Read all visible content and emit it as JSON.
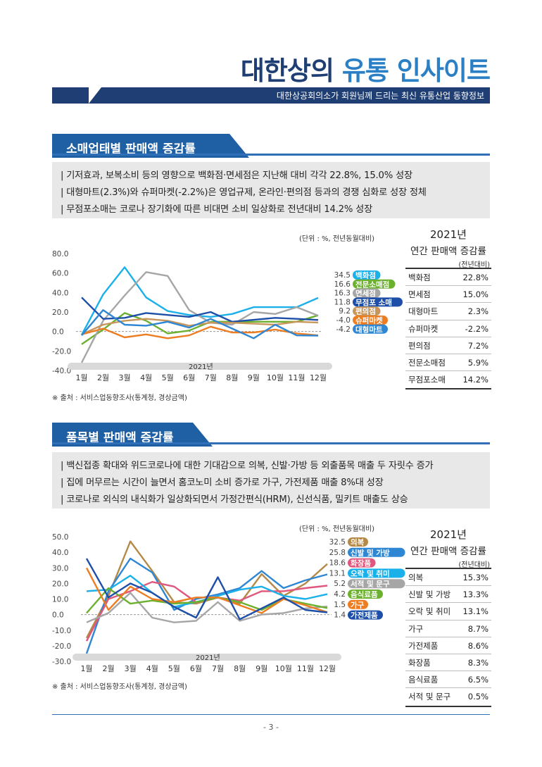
{
  "header": {
    "title_part1": "대한상의 ",
    "title_part2": "유통 인사이트",
    "subtitle": "대한상공회의소가 회원님께 드리는 최신 유통산업 동향정보"
  },
  "sections": [
    {
      "title": "소매업태별 판매액 증감률",
      "bullets": [
        "| 기저효과, 보복소비 등의 영향으로 백화점·면세점은 지난해 대비 각각 22.8%, 15.0% 성장",
        "| 대형마트(2.3%)와 슈퍼마켓(-2.2%)은 영업규제, 온라인·편의점 등과의 경쟁 심화로 성장 정체",
        "| 무점포소매는 코로나 장기화에 따른 비대면 소비 일상화로 전년대비 14.2% 성장"
      ],
      "unit": "(단위 : %, 전년동월대비)",
      "source": "※ 출처 : 서비스업동향조사(통계청, 경상금액)",
      "table": {
        "year": "2021년",
        "name": "연간 판매액 증감률",
        "unit": "(전년대비)",
        "rows": [
          {
            "label": "백화점",
            "value": "22.8%"
          },
          {
            "label": "면세점",
            "value": "15.0%"
          },
          {
            "label": "대형마트",
            "value": "2.3%"
          },
          {
            "label": "슈퍼마켓",
            "value": "-2.2%"
          },
          {
            "label": "편의점",
            "value": "7.2%"
          },
          {
            "label": "전문소매점",
            "value": "5.9%"
          },
          {
            "label": "무점포소매",
            "value": "14.2%"
          }
        ]
      }
    },
    {
      "title": "품목별 판매액 증감률",
      "bullets": [
        "| 백신접종 확대와 위드코로나에 대한 기대감으로 의복, 신발·가방 등 외출품목 매출 두 자릿수 증가",
        "| 집에 머무르는 시간이 늘면서 홈코노미 소비 증가로 가구, 가전제품 매출 8%대 성장",
        "| 코로나로 외식의 내식화가 일상화되면서 가정간편식(HRM), 신선식품, 밀키트 매출도 상승"
      ],
      "unit": "(단위 : %, 전년동월대비)",
      "source": "※ 출처 : 서비스업동향조사(통계청, 경상금액)",
      "table": {
        "year": "2021년",
        "name": "연간 판매액 증감률",
        "unit": "(전년대비)",
        "rows": [
          {
            "label": "의복",
            "value": "15.3%"
          },
          {
            "label": "신발 및 가방",
            "value": "13.3%"
          },
          {
            "label": "오락 및 취미",
            "value": "13.1%"
          },
          {
            "label": "가구",
            "value": "8.7%"
          },
          {
            "label": "가전제품",
            "value": "8.6%"
          },
          {
            "label": "화장품",
            "value": "8.3%"
          },
          {
            "label": "음식료품",
            "value": "6.5%"
          },
          {
            "label": "서적 및 문구",
            "value": "0.5%"
          }
        ]
      }
    }
  ],
  "chart_data": [
    {
      "type": "line",
      "x": [
        "1월",
        "2월",
        "3월",
        "4월",
        "5월",
        "6월",
        "7월",
        "8월",
        "9월",
        "10월",
        "11월",
        "12월"
      ],
      "x_group_label": "2021년",
      "yticks": [
        "80.0",
        "60.0",
        "40.0",
        "20.0",
        "0.0",
        "-20.0",
        "-40.0"
      ],
      "ylim": [
        -40,
        80
      ],
      "series": [
        {
          "name": "백화점",
          "color": "#1ab0ea",
          "end_label": "34.5",
          "values": [
            -3.5,
            38,
            66,
            35,
            21,
            17,
            15,
            18,
            25,
            25,
            25,
            34.5
          ]
        },
        {
          "name": "전문소매점",
          "color": "#6bb02f",
          "end_label": "16.6",
          "values": [
            -13,
            2,
            19,
            11,
            -2,
            1,
            10,
            10,
            10,
            10,
            10,
            16.6
          ]
        },
        {
          "name": "면세점",
          "color": "#a6a6a6",
          "end_label": "16.3",
          "values": [
            -32,
            11,
            37,
            61,
            57,
            22,
            9,
            7,
            20,
            18,
            25,
            16.3
          ]
        },
        {
          "name": "무점포 소매",
          "color": "#1e4fa8",
          "end_label": "11.8",
          "values": [
            35,
            13,
            14,
            19,
            17,
            15,
            20,
            10,
            12,
            14,
            13,
            11.8
          ]
        },
        {
          "name": "편의점",
          "color": "#c8965a",
          "end_label": "9.2",
          "values": [
            -3,
            7,
            11,
            13,
            11,
            6,
            9,
            9,
            8,
            7,
            10,
            9.2
          ]
        },
        {
          "name": "슈퍼마켓",
          "color": "#ee7d22",
          "end_label": "-4.0",
          "values": [
            -3,
            3,
            -6,
            -3,
            -7,
            -4,
            5,
            -1,
            -1,
            2,
            -2,
            -4.0
          ]
        },
        {
          "name": "대형마트",
          "color": "#2f87d3",
          "end_label": "-4.2",
          "values": [
            -4,
            22,
            7,
            6,
            10,
            4,
            13,
            3,
            -7,
            7,
            -4,
            -4.2
          ]
        }
      ]
    },
    {
      "type": "line",
      "x": [
        "1월",
        "2월",
        "3월",
        "4월",
        "5월",
        "6월",
        "7월",
        "8월",
        "9월",
        "10월",
        "11월",
        "12월"
      ],
      "x_group_label": "2021년",
      "yticks": [
        "50.0",
        "40.0",
        "30.0",
        "20.0",
        "10.0",
        "0.0",
        "-10.0",
        "-20.0",
        "-30.0"
      ],
      "ylim": [
        -30,
        50
      ],
      "series": [
        {
          "name": "의복",
          "color": "#b58a48",
          "end_label": "32.5",
          "values": [
            -15,
            12,
            47,
            28,
            8,
            7,
            11,
            7,
            26,
            12,
            20,
            32.5
          ]
        },
        {
          "name": "신발 및 가방",
          "color": "#2f87d3",
          "end_label": "25.8",
          "values": [
            -25,
            15,
            36,
            27,
            3,
            10,
            13,
            17,
            28,
            17,
            22,
            25.8
          ]
        },
        {
          "name": "화장품",
          "color": "#e0577d",
          "end_label": "18.6",
          "values": [
            -17,
            10,
            15,
            21,
            18,
            8,
            11,
            9,
            15,
            15,
            17,
            18.6
          ]
        },
        {
          "name": "오락 및 취미",
          "color": "#1ab0ea",
          "end_label": "13.1",
          "values": [
            15,
            16,
            25,
            14,
            5,
            8,
            12,
            16,
            18,
            12,
            10,
            13.1
          ]
        },
        {
          "name": "서적 및 문구",
          "color": "#a6a6a6",
          "end_label": "5.2",
          "values": [
            -5,
            1,
            14,
            -2,
            -5,
            -4,
            8,
            -4,
            0,
            1,
            4,
            5.2
          ]
        },
        {
          "name": "음식료품",
          "color": "#6bb02f",
          "end_label": "4.2",
          "values": [
            1,
            17,
            7,
            9,
            7,
            8,
            11,
            8,
            3,
            10,
            7,
            4.2
          ]
        },
        {
          "name": "가구",
          "color": "#ee7d22",
          "end_label": "1.5",
          "values": [
            30,
            3,
            18,
            10,
            8,
            11,
            11,
            6,
            1,
            10,
            6,
            1.5
          ]
        },
        {
          "name": "가전제품",
          "color": "#1e4fa8",
          "end_label": "1.4",
          "values": [
            36,
            11,
            20,
            14,
            5,
            -2,
            24,
            -3,
            4,
            11,
            3,
            1.4
          ]
        }
      ]
    }
  ],
  "footer": {
    "page": "- 3 -"
  }
}
